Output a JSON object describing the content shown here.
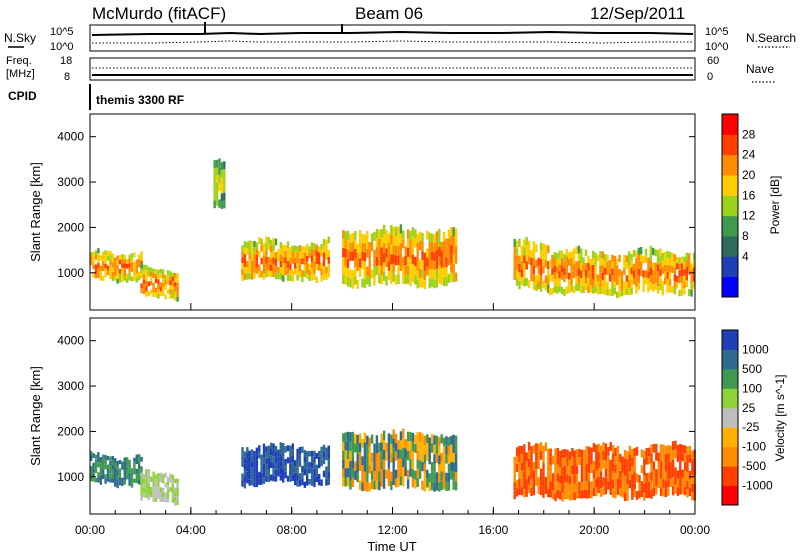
{
  "header": {
    "station": "McMurdo (fitACF)",
    "beam": "Beam 06",
    "date": "12/Sep/2011"
  },
  "summary_panel": {
    "left_label": "N.Sky",
    "left_ticks": [
      "10^5",
      "10^0"
    ],
    "right_ticks": [
      "10^5",
      "10^0"
    ],
    "right_label": "N.Search"
  },
  "freq_panel": {
    "left_label_1": "Freq.",
    "left_label_2": "[MHz]",
    "left_ticks": [
      "18",
      "8"
    ],
    "right_ticks": [
      "60",
      "0"
    ],
    "right_label": "Nave"
  },
  "cpid_panel": {
    "label": "CPID",
    "value": "themis 3300 RF"
  },
  "x_axis": {
    "label": "Time UT",
    "ticks": [
      "00:00",
      "04:00",
      "08:00",
      "12:00",
      "16:00",
      "20:00",
      "00:00"
    ]
  },
  "chart_data": [
    {
      "type": "heatmap",
      "panel": "power",
      "ylabel": "Slant Range [km]",
      "x_range_hours": [
        0,
        24
      ],
      "ylim": [
        180,
        4500
      ],
      "y_ticks": [
        1000,
        2000,
        3000,
        4000
      ],
      "colorbar": {
        "label": "Power [dB]",
        "ticks": [
          "28",
          "24",
          "20",
          "16",
          "12",
          "8",
          "4"
        ],
        "colors": [
          "#0000ff",
          "#1f3fb8",
          "#2e6b5e",
          "#3f9a4f",
          "#9dd21a",
          "#ffcc00",
          "#ff8c00",
          "#ff4000",
          "#ff0000"
        ]
      },
      "echo_regions": [
        {
          "t_start": 0.0,
          "t_end": 2.0,
          "range_low": 800,
          "range_high": 1500,
          "level": "high"
        },
        {
          "t_start": 2.0,
          "t_end": 3.5,
          "range_low": 400,
          "range_high": 1100,
          "level": "high"
        },
        {
          "t_start": 4.9,
          "t_end": 5.3,
          "range_low": 2400,
          "range_high": 3500,
          "level": "medium"
        },
        {
          "t_start": 6.0,
          "t_end": 9.5,
          "range_low": 800,
          "range_high": 1700,
          "level": "high"
        },
        {
          "t_start": 10.0,
          "t_end": 14.5,
          "range_low": 700,
          "range_high": 2000,
          "level": "high"
        },
        {
          "t_start": 16.8,
          "t_end": 18.2,
          "range_low": 600,
          "range_high": 1700,
          "level": "high"
        },
        {
          "t_start": 18.2,
          "t_end": 24.0,
          "range_low": 500,
          "range_high": 1500,
          "level": "high"
        }
      ]
    },
    {
      "type": "heatmap",
      "panel": "velocity",
      "ylabel": "Slant Range [km]",
      "x_range_hours": [
        0,
        24
      ],
      "ylim": [
        180,
        4500
      ],
      "y_ticks": [
        1000,
        2000,
        3000,
        4000
      ],
      "colorbar": {
        "label": "Velocity [m s^-1]",
        "ticks": [
          "1000",
          "500",
          "100",
          "25",
          "-25",
          "-100",
          "-500",
          "-1000"
        ],
        "colors": [
          "#ff0000",
          "#ff4000",
          "#ff8c00",
          "#ffb000",
          "#bebebe",
          "#8fd23a",
          "#3f9a4f",
          "#2e6b8e",
          "#1f3fb8"
        ]
      },
      "echo_regions": [
        {
          "t_start": 0.0,
          "t_end": 2.0,
          "range_low": 800,
          "range_high": 1500,
          "velocity": "toward"
        },
        {
          "t_start": 2.0,
          "t_end": 3.5,
          "range_low": 400,
          "range_high": 1100,
          "velocity": "near-zero"
        },
        {
          "t_start": 6.0,
          "t_end": 9.5,
          "range_low": 800,
          "range_high": 1700,
          "velocity": "toward-strong"
        },
        {
          "t_start": 10.0,
          "t_end": 14.5,
          "range_low": 700,
          "range_high": 2000,
          "velocity": "mixed"
        },
        {
          "t_start": 16.8,
          "t_end": 24.0,
          "range_low": 500,
          "range_high": 1700,
          "velocity": "away"
        }
      ]
    }
  ]
}
